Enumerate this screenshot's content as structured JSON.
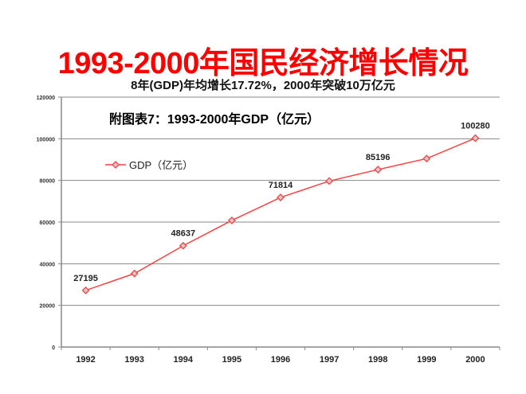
{
  "header": {
    "title": "1993-2000年国民经济增长情况",
    "subtitle": "8年(GDP)年均增长17.72%，2000年突破10万亿元"
  },
  "chart_data": {
    "type": "line",
    "title": "附图表7：1993-2000年GDP（亿元）",
    "categories": [
      "1992",
      "1993",
      "1994",
      "1995",
      "1996",
      "1997",
      "1998",
      "1999",
      "2000"
    ],
    "series": [
      {
        "name": "GDP（亿元）",
        "values": [
          27195,
          35300,
          48637,
          60800,
          71814,
          79700,
          85196,
          90500,
          100280
        ],
        "color": "#ff4040"
      }
    ],
    "data_labels": [
      {
        "category": "1992",
        "text": "27195"
      },
      {
        "category": "1994",
        "text": "48637"
      },
      {
        "category": "1996",
        "text": "71814"
      },
      {
        "category": "1998",
        "text": "85196"
      },
      {
        "category": "2000",
        "text": "100280"
      }
    ],
    "yticks": [
      "0",
      "20000",
      "40000",
      "60000",
      "80000",
      "100000",
      "120000"
    ],
    "ylim": [
      0,
      120000
    ],
    "grid": true,
    "legend": "upper-left inside",
    "xlabel": "",
    "ylabel": ""
  }
}
